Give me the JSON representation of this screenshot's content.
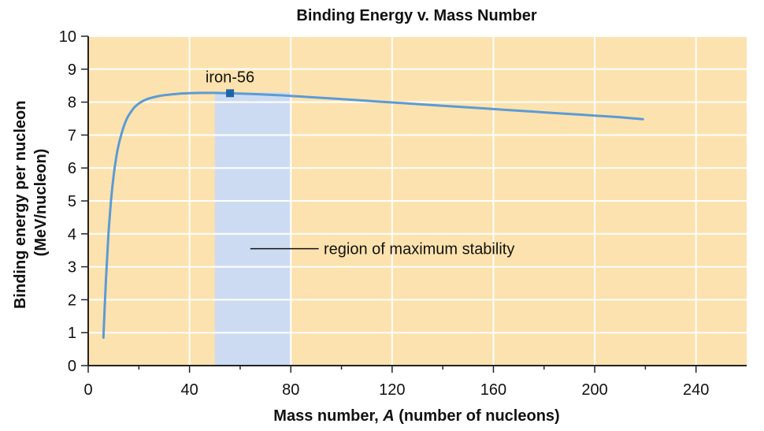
{
  "chart_data": {
    "type": "line",
    "title": "Binding Energy v. Mass Number",
    "xlabel": "Mass number, A (number of nucleons)",
    "xlabel_parts": [
      "Mass number, ",
      "A",
      " (number of nucleons)"
    ],
    "ylabel_lines": [
      "Binding energy per nucleon",
      "(MeV/nucleon)"
    ],
    "xlim": [
      0,
      260
    ],
    "ylim": [
      0,
      10
    ],
    "xticks": [
      0,
      40,
      80,
      120,
      160,
      200,
      240
    ],
    "yticks": [
      0,
      1,
      2,
      3,
      4,
      5,
      6,
      7,
      8,
      9,
      10
    ],
    "grid": true,
    "series": [
      {
        "x": [
          6,
          7,
          8,
          9,
          10,
          11,
          12,
          13,
          14,
          15,
          16,
          18,
          20,
          22,
          24,
          27,
          30,
          35,
          40,
          45,
          50,
          56,
          60,
          70,
          80,
          90,
          100,
          110,
          120,
          130,
          140,
          150,
          160,
          170,
          180,
          190,
          200,
          210,
          219
        ],
        "y": [
          0.85,
          2.6,
          4.0,
          5.0,
          5.75,
          6.3,
          6.7,
          7.0,
          7.25,
          7.45,
          7.6,
          7.82,
          7.96,
          8.05,
          8.11,
          8.17,
          8.21,
          8.25,
          8.27,
          8.28,
          8.28,
          8.27,
          8.26,
          8.23,
          8.19,
          8.14,
          8.09,
          8.04,
          7.99,
          7.94,
          7.89,
          7.84,
          7.79,
          7.74,
          7.69,
          7.64,
          7.59,
          7.54,
          7.48
        ]
      }
    ],
    "highlight_region": {
      "x": [
        50,
        80
      ],
      "label": "region of maximum stability"
    },
    "marker": {
      "x": 56,
      "y": 8.27,
      "label": "iron-56"
    },
    "colors": {
      "background": "#fce2ae",
      "region": "#cddbf2",
      "line": "#5b9bd5",
      "marker": "#1e64aa",
      "grid": "#ffffff",
      "axis": "#222222"
    }
  }
}
